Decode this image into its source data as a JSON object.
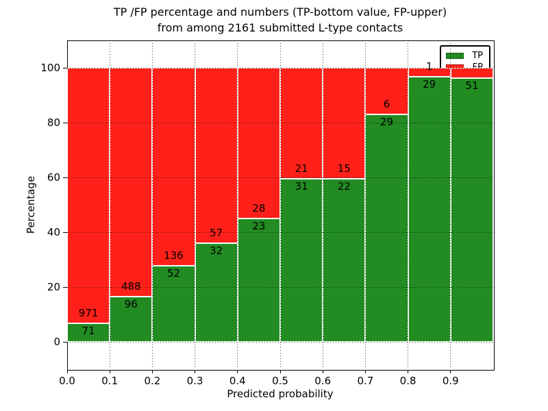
{
  "figure": {
    "title_line1": "TP /FP percentage and numbers (TP-bottom value, FP-upper)",
    "title_line2": "from among 2161 submitted L-type contacts",
    "xlabel": "Predicted probability",
    "ylabel": "Percentage"
  },
  "legend": {
    "position": "upper right",
    "items": [
      {
        "label": "TP",
        "color": "#228b22"
      },
      {
        "label": "FP",
        "color": "#ff2119"
      }
    ]
  },
  "chart_data": {
    "type": "bar",
    "stacked": true,
    "title": "TP /FP percentage and numbers (TP-bottom value, FP-upper) from among 2161 submitted L-type contacts",
    "xlabel": "Predicted probability",
    "ylabel": "Percentage",
    "total_submitted_contacts": 2161,
    "xlim": [
      0.0,
      1.0
    ],
    "ylim": [
      -10,
      110
    ],
    "xticks": [
      "0.0",
      "0.1",
      "0.2",
      "0.3",
      "0.4",
      "0.5",
      "0.6",
      "0.7",
      "0.8",
      "0.9"
    ],
    "yticks": [
      0,
      20,
      40,
      60,
      80,
      100
    ],
    "grid": "dotted-black-both-axes",
    "legend_position": "upper right",
    "bin_width": 0.1,
    "bin_starts": [
      0.0,
      0.1,
      0.2,
      0.3,
      0.4,
      0.5,
      0.6,
      0.7,
      0.8,
      0.9
    ],
    "series": [
      {
        "name": "TP",
        "color": "#228b22",
        "counts": [
          71,
          96,
          52,
          32,
          23,
          31,
          22,
          29,
          29,
          51
        ],
        "labels": [
          "71",
          "96",
          "52",
          "32",
          "23",
          "31",
          "22",
          "29",
          "29",
          "51"
        ],
        "pct": [
          6.8,
          16.4,
          27.7,
          36.0,
          45.1,
          59.6,
          59.5,
          82.9,
          96.7,
          96.2
        ]
      },
      {
        "name": "FP",
        "color": "#ff2119",
        "counts": [
          971,
          488,
          136,
          57,
          28,
          21,
          15,
          6,
          1,
          null
        ],
        "labels": [
          "971",
          "488",
          "136",
          "57",
          "28",
          "21",
          "15",
          "6",
          "1",
          ""
        ],
        "pct": [
          93.2,
          83.6,
          72.3,
          64.0,
          54.9,
          40.4,
          40.5,
          17.1,
          3.3,
          3.8
        ]
      }
    ]
  }
}
